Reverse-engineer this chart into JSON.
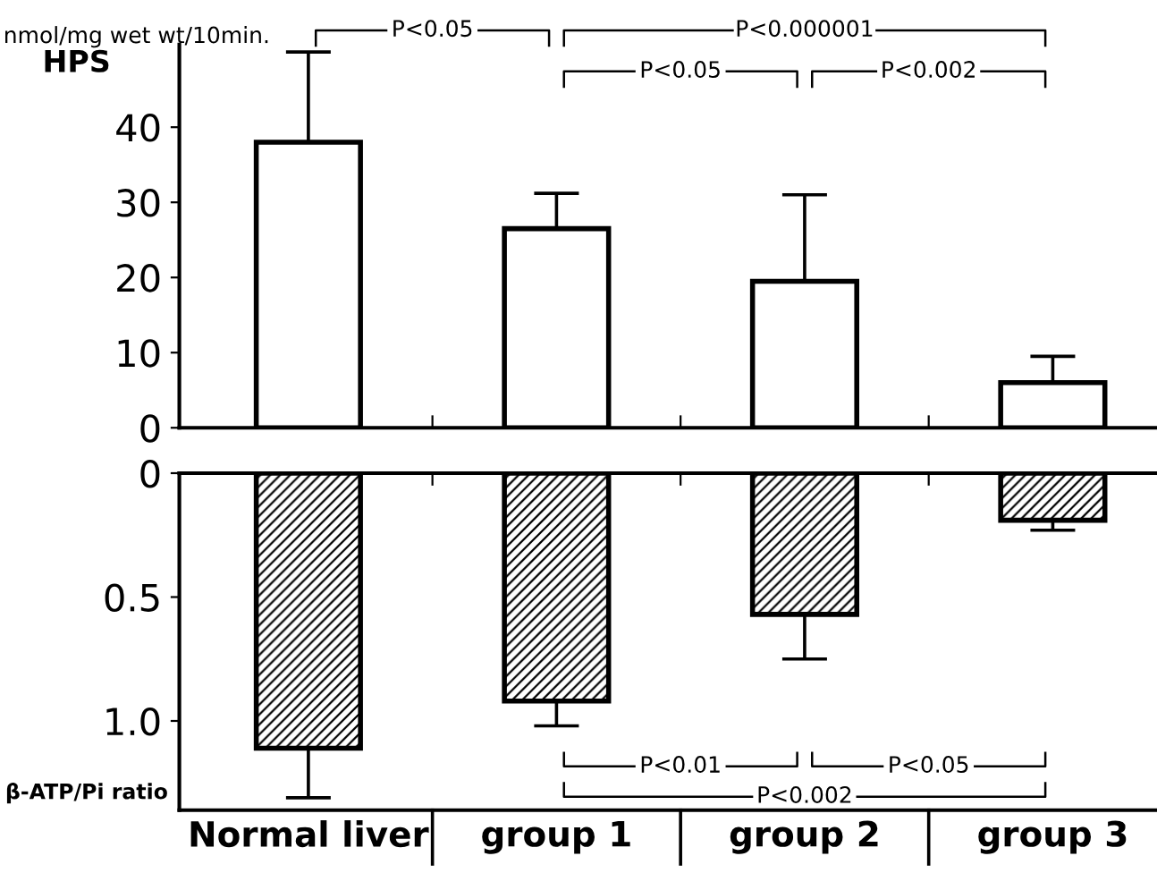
{
  "chart_data": [
    {
      "type": "bar",
      "ylabel": "HPS",
      "categories": [
        null,
        null,
        null,
        null
      ],
      "series": [
        {
          "color": "#ffffff",
          "values": [
            38,
            26.5,
            19.5,
            6
          ],
          "errors": [
            [
              38,
              50
            ],
            [
              26.5,
              31.2
            ],
            [
              19.5,
              31
            ],
            [
              6,
              9.5
            ]
          ]
        }
      ],
      "ylim": [
        0,
        51
      ],
      "yticks": [
        0,
        10,
        20,
        30,
        40
      ],
      "tick_labels": "y",
      "grid": false,
      "annotations": [
        "nmol/mg wet wt/10min.",
        "P<0.05",
        "P<0.000001",
        "P<0.05",
        "P<0.002"
      ]
    },
    {
      "type": "bar",
      "ylabel": "β-ATP/Pi ratio",
      "categories": [
        "Normal liver",
        "group 1",
        "group 2",
        "group 3"
      ],
      "series": [
        {
          "color": "#000000",
          "values": [
            1.11,
            0.92,
            0.57,
            0.19
          ],
          "errors": [
            [
              1.11,
              1.31
            ],
            [
              0.92,
              1.02
            ],
            [
              0.57,
              0.75
            ],
            [
              0.19,
              0.23
            ]
          ]
        }
      ],
      "ylim": [
        1.36,
        0
      ],
      "yticks": [
        0,
        {
          "value": 0.5,
          "label": "0.5"
        },
        {
          "value": 1.0,
          "label": "1.0"
        }
      ],
      "grid": false,
      "annotations": [
        "P<0.01",
        "P<0.05",
        "P<0.002"
      ]
    }
  ]
}
